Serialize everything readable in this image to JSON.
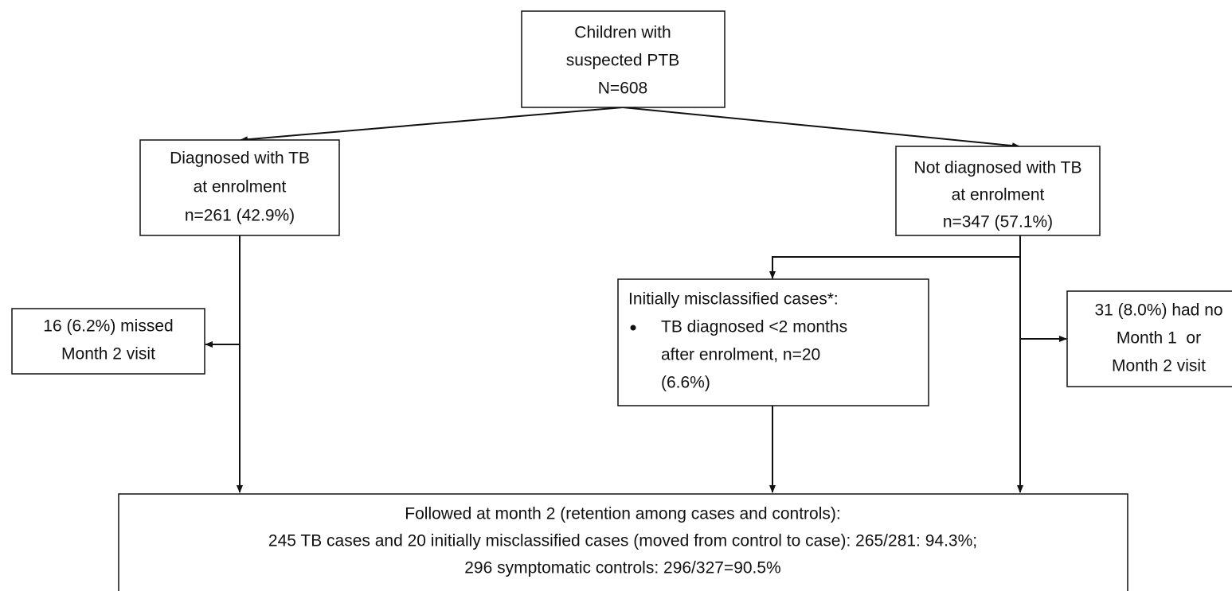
{
  "nodes": [
    {
      "lines": [
        "Children with",
        "suspected PTB",
        "N=608"
      ]
    },
    {
      "lines": [
        "Diagnosed with TB",
        "at enrolment",
        "n=261 (42.9%)"
      ]
    },
    {
      "lines": [
        "Not diagnosed with TB",
        "at enrolment",
        "n=347 (57.1%)"
      ]
    },
    {
      "lines": [
        "16 (6.2%) missed",
        "Month 2 visit"
      ]
    },
    {
      "lines": [
        "Initially misclassified cases*:",
        "TB diagnosed <2 months",
        "after enrolment, n=20",
        "(6.6%)"
      ]
    },
    {
      "lines": [
        "31 (8.0%) had no",
        "Month 1  or",
        "Month 2 visit"
      ]
    },
    {
      "lines": [
        "Followed at month 2 (retention among cases and controls):",
        "245 TB cases and 20 initially misclassified cases (moved from control to case): 265/281: 94.3%;",
        "296 symptomatic controls: 296/327=90.5%"
      ]
    }
  ]
}
